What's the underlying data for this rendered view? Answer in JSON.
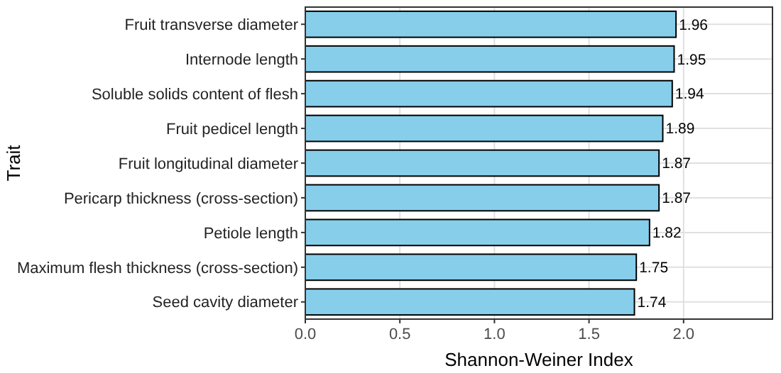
{
  "chart_data": {
    "type": "bar",
    "orientation": "horizontal",
    "xlabel": "Shannon-Weiner Index",
    "ylabel": "Trait",
    "categories": [
      "Fruit transverse diameter",
      "Internode length",
      "Soluble solids content of flesh",
      "Fruit pedicel length",
      "Fruit longitudinal diameter",
      "Pericarp thickness (cross-section)",
      "Petiole length",
      "Maximum flesh thickness (cross-section)",
      "Seed cavity diameter"
    ],
    "values": [
      1.96,
      1.95,
      1.94,
      1.89,
      1.87,
      1.87,
      1.82,
      1.75,
      1.74
    ],
    "color": "#87ceeb",
    "data_labels": true,
    "grid": true,
    "xlim": [
      0,
      2.47
    ],
    "xticks": [
      {
        "value": 0,
        "label": "0.0"
      },
      {
        "value": 0.5,
        "label": "0.5"
      },
      {
        "value": 1,
        "label": "1.0"
      },
      {
        "value": 1.5,
        "label": "1.5"
      },
      {
        "value": 2,
        "label": "2.0"
      }
    ]
  }
}
